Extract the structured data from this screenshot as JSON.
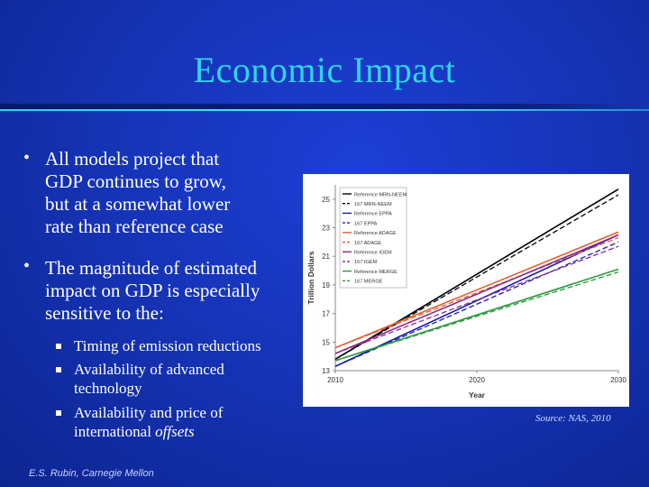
{
  "slide": {
    "title": "Economic Impact",
    "bullets": [
      {
        "lines": [
          "All models project that",
          "GDP continues to grow,",
          "but at a somewhat lower",
          "rate than reference case"
        ]
      },
      {
        "lines": [
          "The magnitude of estimated",
          "impact on GDP is especially",
          "sensitive to the:"
        ]
      }
    ],
    "subbullets": [
      {
        "lines": [
          "Timing of emission reductions"
        ]
      },
      {
        "lines": [
          "Availability of advanced",
          "technology"
        ]
      },
      {
        "lines": [
          "Availability and price of",
          "international offsets"
        ],
        "italic_word": "offsets"
      }
    ],
    "footer": "E.S. Rubin, Carnegie Mellon",
    "source": "Source: NAS, 2010"
  },
  "chart_data": {
    "type": "line",
    "xlabel": "Year",
    "ylabel": "Trillion Dollars",
    "xlim": [
      2010,
      2030
    ],
    "ylim": [
      13,
      26
    ],
    "x_ticks": [
      "2010",
      "2020",
      "2030"
    ],
    "y_ticks": [
      "13",
      "15",
      "17",
      "19",
      "21",
      "23",
      "25"
    ],
    "grid": false,
    "legend_position": "top-left",
    "x": [
      2010,
      2030
    ],
    "series": [
      {
        "name": "Reference MRN-NEEM",
        "values": [
          13.8,
          25.7
        ],
        "color": "#000000",
        "dash": false
      },
      {
        "name": "167 MRN-NEEM",
        "values": [
          13.8,
          25.3
        ],
        "color": "#000000",
        "dash": true
      },
      {
        "name": "Reference EPPA",
        "values": [
          13.3,
          22.5
        ],
        "color": "#1a1ab0",
        "dash": false
      },
      {
        "name": "167 EPPA",
        "values": [
          13.3,
          22.0
        ],
        "color": "#1a1ab0",
        "dash": true
      },
      {
        "name": "Reference ADAGE",
        "values": [
          14.6,
          22.7
        ],
        "color": "#e06030",
        "dash": false
      },
      {
        "name": "167 ADAGE",
        "values": [
          14.6,
          22.3
        ],
        "color": "#e06030",
        "dash": true
      },
      {
        "name": "Reference IGEM",
        "values": [
          14.2,
          22.5
        ],
        "color": "#8b2d8b",
        "dash": false
      },
      {
        "name": "167 IGEM",
        "values": [
          14.2,
          21.7
        ],
        "color": "#8b2d8b",
        "dash": true
      },
      {
        "name": "Reference MERGE",
        "values": [
          13.7,
          20.1
        ],
        "color": "#2a9a3a",
        "dash": false
      },
      {
        "name": "167 MERGE",
        "values": [
          13.7,
          19.9
        ],
        "color": "#2a9a3a",
        "dash": true
      }
    ]
  }
}
